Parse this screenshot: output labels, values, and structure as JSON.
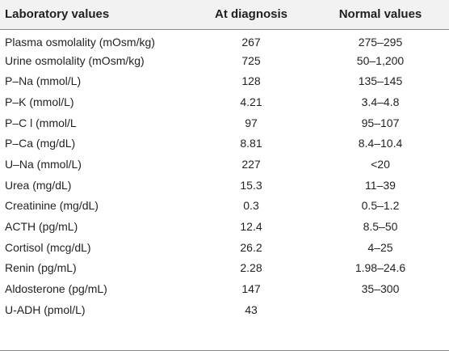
{
  "table": {
    "headers": [
      "Laboratory values",
      "At diagnosis",
      "Normal values"
    ],
    "rows": [
      [
        "Plasma osmolality (mOsm/kg)",
        "267",
        "275–295"
      ],
      [
        "Urine osmolality (mOsm/kg)",
        "725",
        "50–1,200"
      ],
      [
        "P–Na (mmol/L)",
        "128",
        "135–145"
      ],
      [
        "P–K (mmol/L)",
        "4.21",
        "3.4–4.8"
      ],
      [
        "P–C l (mmol/L",
        "97",
        "95–107"
      ],
      [
        "P–Ca (mg/dL)",
        "8.81",
        "8.4–10.4"
      ],
      [
        "U–Na (mmol/L)",
        "227",
        "<20"
      ],
      [
        "Urea (mg/dL)",
        "15.3",
        "11–39"
      ],
      [
        "Creatinine (mg/dL)",
        "0.3",
        "0.5–1.2"
      ],
      [
        "ACTH (pg/mL)",
        "12.4",
        "8.5–50"
      ],
      [
        "Cortisol (mcg/dL)",
        "26.2",
        "4–25"
      ],
      [
        "Renin (pg/mL)",
        "2.28",
        "1.98–24.6"
      ],
      [
        "Aldosterone (pg/mL)",
        "147",
        "35–300"
      ],
      [
        "U-ADH (pmol/L)",
        "43",
        ""
      ]
    ]
  }
}
